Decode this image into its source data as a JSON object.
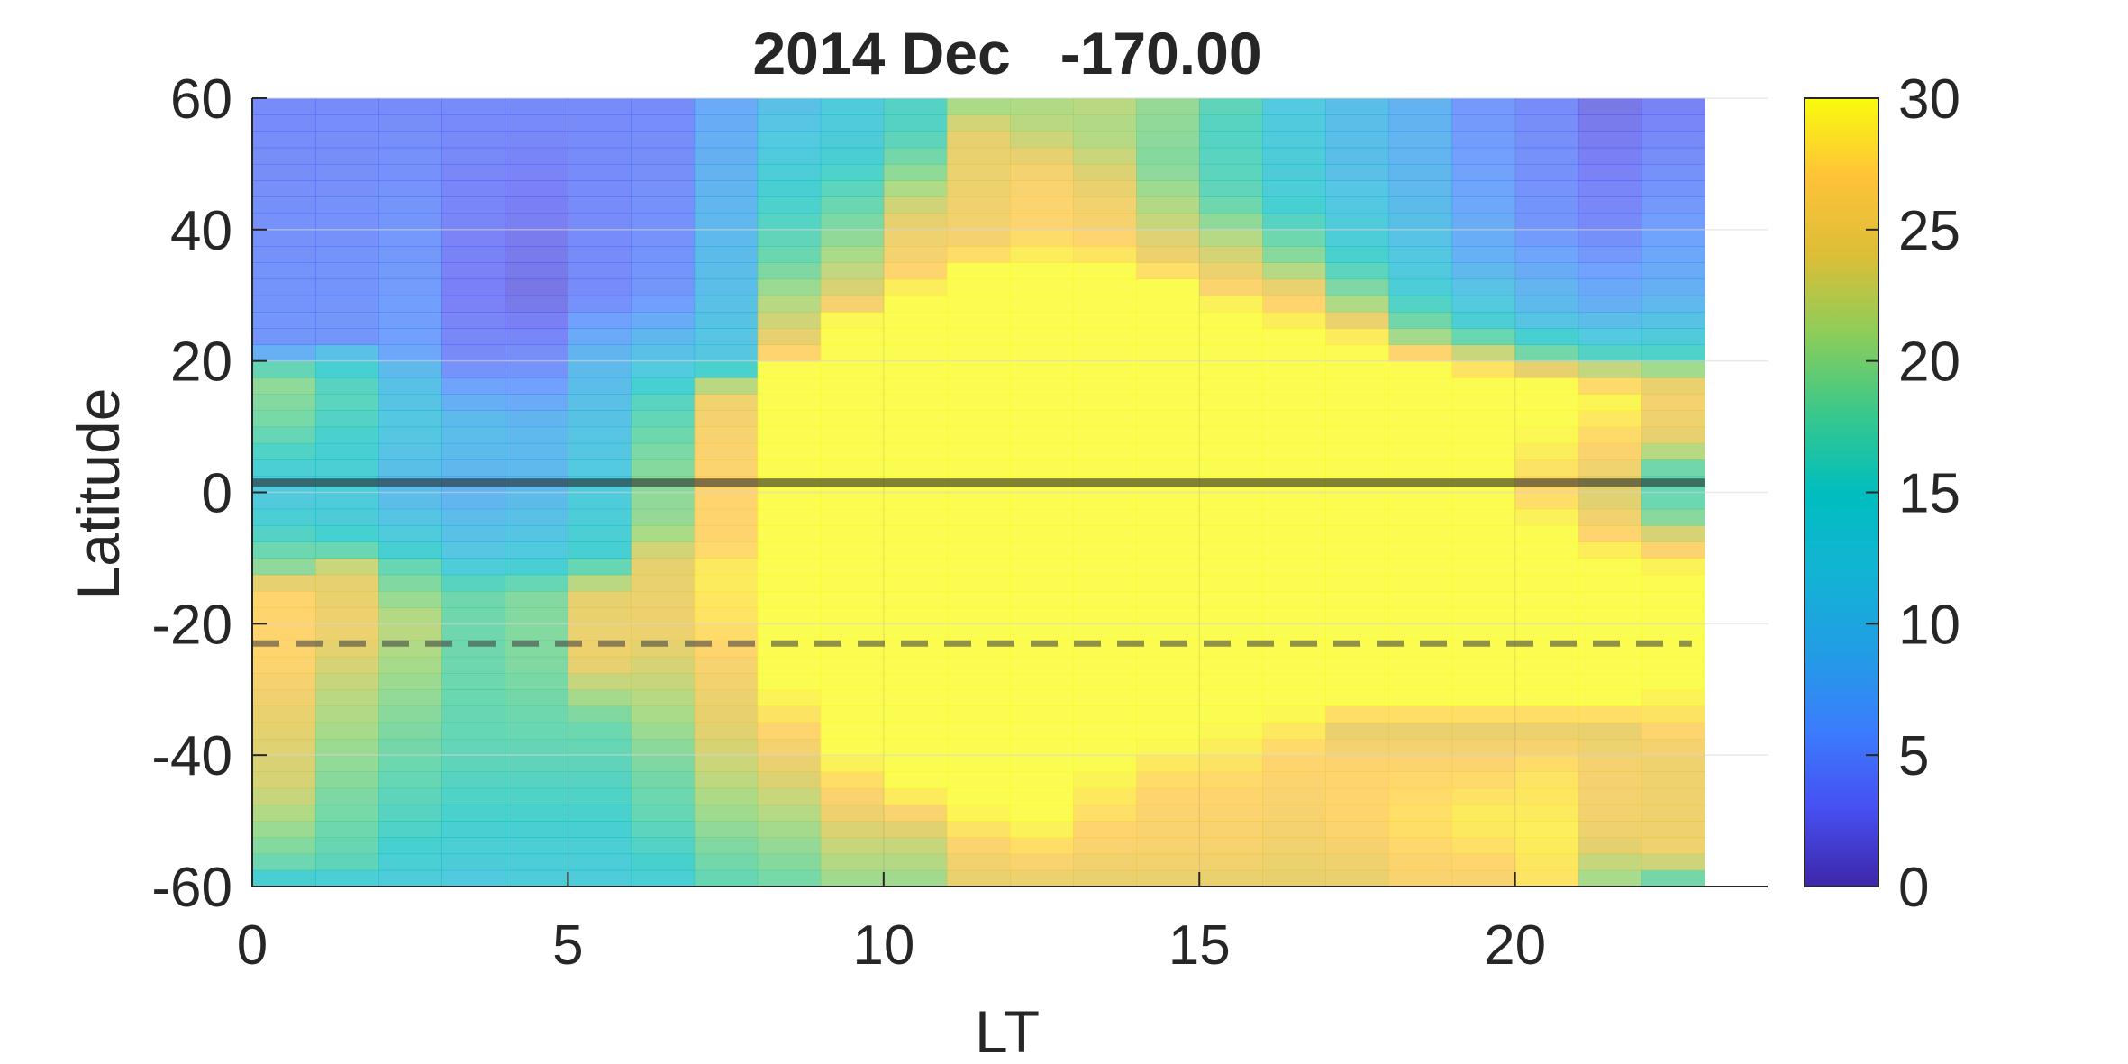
{
  "chart_data": {
    "type": "heatmap",
    "title": "2014 Dec   -170.00",
    "xlabel": "LT",
    "ylabel": "Latitude",
    "xlim": [
      0,
      24
    ],
    "ylim": [
      -60,
      60
    ],
    "xticks": [
      0,
      5,
      10,
      15,
      20
    ],
    "yticks": [
      -60,
      -40,
      -20,
      0,
      20,
      40,
      60
    ],
    "colorbar": {
      "clim": [
        0,
        30
      ],
      "ticks": [
        0,
        5,
        10,
        15,
        20,
        25,
        30
      ],
      "colormap": "parula"
    },
    "cell_lat_step": 2.5,
    "lt_columns": [
      0,
      1,
      2,
      3,
      4,
      5,
      6,
      7,
      8,
      9,
      10,
      11,
      12,
      13,
      14,
      15,
      16,
      17,
      18,
      19,
      20,
      21,
      22
    ],
    "columns": [
      {
        "lt": 0,
        "nodes": [
          [
            -60,
            13
          ],
          [
            -56,
            18
          ],
          [
            -45,
            23
          ],
          [
            -35,
            24
          ],
          [
            -25,
            27
          ],
          [
            -15,
            27
          ],
          [
            -12,
            20
          ],
          [
            -5,
            15
          ],
          [
            0,
            12
          ],
          [
            10,
            18
          ],
          [
            18,
            20
          ],
          [
            22,
            5
          ],
          [
            60,
            4
          ]
        ]
      },
      {
        "lt": 1,
        "nodes": [
          [
            -60,
            13
          ],
          [
            -56,
            17
          ],
          [
            -45,
            19
          ],
          [
            -30,
            22
          ],
          [
            -20,
            25
          ],
          [
            -12,
            24
          ],
          [
            -8,
            16
          ],
          [
            -3,
            13
          ],
          [
            8,
            15
          ],
          [
            15,
            17
          ],
          [
            20,
            14
          ],
          [
            23,
            5
          ],
          [
            60,
            4
          ]
        ]
      },
      {
        "lt": 2,
        "nodes": [
          [
            -60,
            13
          ],
          [
            -50,
            16
          ],
          [
            -40,
            18
          ],
          [
            -30,
            20
          ],
          [
            -20,
            22
          ],
          [
            -12,
            18
          ],
          [
            -8,
            14
          ],
          [
            0,
            9
          ],
          [
            10,
            12
          ],
          [
            18,
            10
          ],
          [
            22,
            6
          ],
          [
            60,
            4
          ]
        ]
      },
      {
        "lt": 3,
        "nodes": [
          [
            -60,
            12
          ],
          [
            -55,
            14
          ],
          [
            -40,
            17
          ],
          [
            -25,
            18
          ],
          [
            -15,
            18
          ],
          [
            -12,
            14
          ],
          [
            -10,
            12
          ],
          [
            0,
            8
          ],
          [
            10,
            10
          ],
          [
            20,
            4
          ],
          [
            30,
            3
          ],
          [
            60,
            4
          ]
        ]
      },
      {
        "lt": 4,
        "nodes": [
          [
            -60,
            13
          ],
          [
            -50,
            15
          ],
          [
            -40,
            17
          ],
          [
            -25,
            19
          ],
          [
            -15,
            19
          ],
          [
            -12,
            15
          ],
          [
            -8,
            12
          ],
          [
            0,
            9
          ],
          [
            10,
            9
          ],
          [
            18,
            5
          ],
          [
            30,
            2
          ],
          [
            60,
            4
          ]
        ]
      },
      {
        "lt": 5,
        "nodes": [
          [
            -60,
            13
          ],
          [
            -50,
            15
          ],
          [
            -35,
            18
          ],
          [
            -25,
            25
          ],
          [
            -15,
            24
          ],
          [
            -10,
            15
          ],
          [
            0,
            13
          ],
          [
            10,
            11
          ],
          [
            20,
            9
          ],
          [
            30,
            4
          ],
          [
            60,
            4
          ]
        ]
      },
      {
        "lt": 6,
        "nodes": [
          [
            -60,
            14
          ],
          [
            -50,
            17
          ],
          [
            -40,
            19
          ],
          [
            -30,
            22
          ],
          [
            -20,
            25
          ],
          [
            -10,
            24
          ],
          [
            -5,
            20
          ],
          [
            5,
            19
          ],
          [
            15,
            16
          ],
          [
            20,
            11
          ],
          [
            30,
            5
          ],
          [
            60,
            4
          ]
        ]
      },
      {
        "lt": 7,
        "nodes": [
          [
            -60,
            17
          ],
          [
            -50,
            20
          ],
          [
            -40,
            23
          ],
          [
            -30,
            25
          ],
          [
            -20,
            28
          ],
          [
            -12,
            29
          ],
          [
            -8,
            27
          ],
          [
            0,
            27
          ],
          [
            10,
            26
          ],
          [
            15,
            25
          ],
          [
            20,
            12
          ],
          [
            30,
            10
          ],
          [
            50,
            8
          ],
          [
            60,
            7
          ]
        ]
      },
      {
        "lt": 8,
        "nodes": [
          [
            -60,
            18
          ],
          [
            -50,
            21
          ],
          [
            -40,
            25
          ],
          [
            -30,
            30
          ],
          [
            20,
            30
          ],
          [
            22,
            25
          ],
          [
            28,
            22
          ],
          [
            35,
            18
          ],
          [
            45,
            15
          ],
          [
            60,
            10
          ]
        ]
      },
      {
        "lt": 9,
        "nodes": [
          [
            -60,
            20
          ],
          [
            -52,
            23
          ],
          [
            -45,
            27
          ],
          [
            -40,
            30
          ],
          [
            26,
            30
          ],
          [
            30,
            24
          ],
          [
            38,
            20
          ],
          [
            45,
            17
          ],
          [
            55,
            13
          ],
          [
            60,
            13
          ]
        ]
      },
      {
        "lt": 10,
        "nodes": [
          [
            -60,
            20
          ],
          [
            -52,
            23
          ],
          [
            -48,
            27
          ],
          [
            -45,
            30
          ],
          [
            30,
            30
          ],
          [
            35,
            26
          ],
          [
            42,
            24
          ],
          [
            48,
            20
          ],
          [
            55,
            16
          ],
          [
            60,
            16
          ]
        ]
      },
      {
        "lt": 11,
        "nodes": [
          [
            -60,
            24
          ],
          [
            -55,
            26
          ],
          [
            -48,
            30
          ],
          [
            34,
            30
          ],
          [
            38,
            26
          ],
          [
            45,
            25
          ],
          [
            55,
            24
          ],
          [
            60,
            20
          ]
        ]
      },
      {
        "lt": 12,
        "nodes": [
          [
            -60,
            24
          ],
          [
            -55,
            27
          ],
          [
            -50,
            30
          ],
          [
            34,
            30
          ],
          [
            40,
            27
          ],
          [
            48,
            26
          ],
          [
            55,
            22
          ],
          [
            60,
            21
          ]
        ]
      },
      {
        "lt": 13,
        "nodes": [
          [
            -60,
            24
          ],
          [
            -55,
            26
          ],
          [
            -48,
            28
          ],
          [
            -42,
            30
          ],
          [
            34,
            30
          ],
          [
            38,
            27
          ],
          [
            45,
            25
          ],
          [
            55,
            21
          ],
          [
            60,
            22
          ]
        ]
      },
      {
        "lt": 14,
        "nodes": [
          [
            -60,
            24
          ],
          [
            -55,
            26
          ],
          [
            -45,
            27
          ],
          [
            -38,
            30
          ],
          [
            32,
            30
          ],
          [
            36,
            25
          ],
          [
            42,
            22
          ],
          [
            50,
            19
          ],
          [
            60,
            20
          ]
        ]
      },
      {
        "lt": 15,
        "nodes": [
          [
            -60,
            24
          ],
          [
            -55,
            26
          ],
          [
            -45,
            27
          ],
          [
            -35,
            30
          ],
          [
            28,
            30
          ],
          [
            32,
            26
          ],
          [
            38,
            22
          ],
          [
            45,
            17
          ],
          [
            55,
            16
          ],
          [
            60,
            17
          ]
        ]
      },
      {
        "lt": 16,
        "nodes": [
          [
            -60,
            24
          ],
          [
            -50,
            26
          ],
          [
            -40,
            27
          ],
          [
            -33,
            30
          ],
          [
            25,
            30
          ],
          [
            30,
            26
          ],
          [
            35,
            20
          ],
          [
            45,
            14
          ],
          [
            60,
            12
          ]
        ]
      },
      {
        "lt": 17,
        "nodes": [
          [
            -60,
            24
          ],
          [
            -50,
            27
          ],
          [
            -42,
            27
          ],
          [
            -35,
            24
          ],
          [
            -33,
            30
          ],
          [
            23,
            30
          ],
          [
            28,
            22
          ],
          [
            33,
            17
          ],
          [
            40,
            13
          ],
          [
            50,
            10
          ],
          [
            60,
            10
          ]
        ]
      },
      {
        "lt": 18,
        "nodes": [
          [
            -60,
            26
          ],
          [
            -50,
            28
          ],
          [
            -42,
            27
          ],
          [
            -35,
            24
          ],
          [
            -33,
            30
          ],
          [
            20,
            30
          ],
          [
            24,
            20
          ],
          [
            32,
            13
          ],
          [
            45,
            9
          ],
          [
            60,
            8
          ]
        ]
      },
      {
        "lt": 19,
        "nodes": [
          [
            -60,
            26
          ],
          [
            -50,
            29
          ],
          [
            -42,
            27
          ],
          [
            -35,
            24
          ],
          [
            -33,
            30
          ],
          [
            18,
            30
          ],
          [
            20,
            25
          ],
          [
            25,
            15
          ],
          [
            35,
            8
          ],
          [
            50,
            6
          ],
          [
            60,
            5
          ]
        ]
      },
      {
        "lt": 20,
        "nodes": [
          [
            -60,
            28
          ],
          [
            -52,
            29
          ],
          [
            -42,
            28
          ],
          [
            -35,
            24
          ],
          [
            -33,
            30
          ],
          [
            -5,
            30
          ],
          [
            0,
            27
          ],
          [
            10,
            30
          ],
          [
            17,
            30
          ],
          [
            20,
            20
          ],
          [
            27,
            10
          ],
          [
            40,
            5
          ],
          [
            60,
            4
          ]
        ]
      },
      {
        "lt": 21,
        "nodes": [
          [
            -60,
            20
          ],
          [
            -52,
            25
          ],
          [
            -42,
            26
          ],
          [
            -35,
            24
          ],
          [
            -33,
            30
          ],
          [
            -10,
            30
          ],
          [
            -5,
            26
          ],
          [
            0,
            23
          ],
          [
            5,
            26
          ],
          [
            15,
            30
          ],
          [
            18,
            24
          ],
          [
            22,
            14
          ],
          [
            28,
            8
          ],
          [
            40,
            4
          ],
          [
            60,
            2
          ]
        ]
      },
      {
        "lt": 22,
        "nodes": [
          [
            -60,
            16
          ],
          [
            -55,
            25
          ],
          [
            -40,
            25
          ],
          [
            -30,
            30
          ],
          [
            -12,
            30
          ],
          [
            -8,
            26
          ],
          [
            -3,
            18
          ],
          [
            3,
            17
          ],
          [
            8,
            24
          ],
          [
            15,
            26
          ],
          [
            18,
            22
          ],
          [
            22,
            14
          ],
          [
            30,
            8
          ],
          [
            45,
            5
          ],
          [
            60,
            3
          ]
        ]
      }
    ],
    "reference_lines": [
      {
        "latitude": 1.5,
        "style": "solid",
        "color": "#1b1b1b"
      },
      {
        "latitude": -23,
        "style": "dashed",
        "color": "#3a3a3a"
      }
    ]
  }
}
